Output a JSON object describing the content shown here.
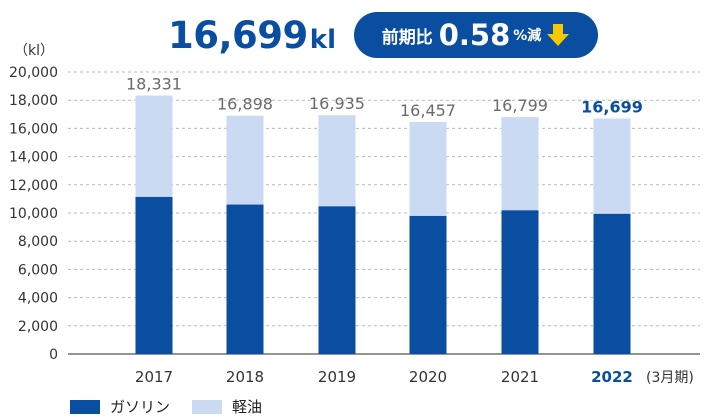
{
  "headline": {
    "value": "16,699",
    "unit": "kl"
  },
  "change": {
    "label": "前期比",
    "value": "0.58",
    "suffix": "%減",
    "direction": "down"
  },
  "colors": {
    "gasoline": "#0a4ea2",
    "diesel": "#c9daf2",
    "accent": "#0a4ea2",
    "arrow": "#f5c800"
  },
  "chart_data": {
    "type": "bar",
    "stacked": true,
    "categories": [
      "2017",
      "2018",
      "2019",
      "2020",
      "2021",
      "2022"
    ],
    "highlight_category": "2022",
    "series": [
      {
        "name": "ガソリン",
        "values": [
          11150,
          10600,
          10480,
          9800,
          10200,
          9950
        ]
      },
      {
        "name": "軽油",
        "values": [
          7181,
          6298,
          6455,
          6657,
          6599,
          6749
        ]
      }
    ],
    "totals": [
      "18,331",
      "16,898",
      "16,935",
      "16,457",
      "16,799",
      "16,699"
    ],
    "total_values": [
      18331,
      16898,
      16935,
      16457,
      16799,
      16699
    ],
    "y_unit": "（kl）",
    "x_note": "(3月期)",
    "ylim": [
      0,
      20000
    ],
    "yticks": [
      "0",
      "2,000",
      "4,000",
      "6,000",
      "8,000",
      "10,000",
      "12,000",
      "14,000",
      "16,000",
      "18,000",
      "20,000"
    ],
    "ytick_values": [
      0,
      2000,
      4000,
      6000,
      8000,
      10000,
      12000,
      14000,
      16000,
      18000,
      20000
    ],
    "grid": true,
    "legend_position": "bottom-left"
  }
}
